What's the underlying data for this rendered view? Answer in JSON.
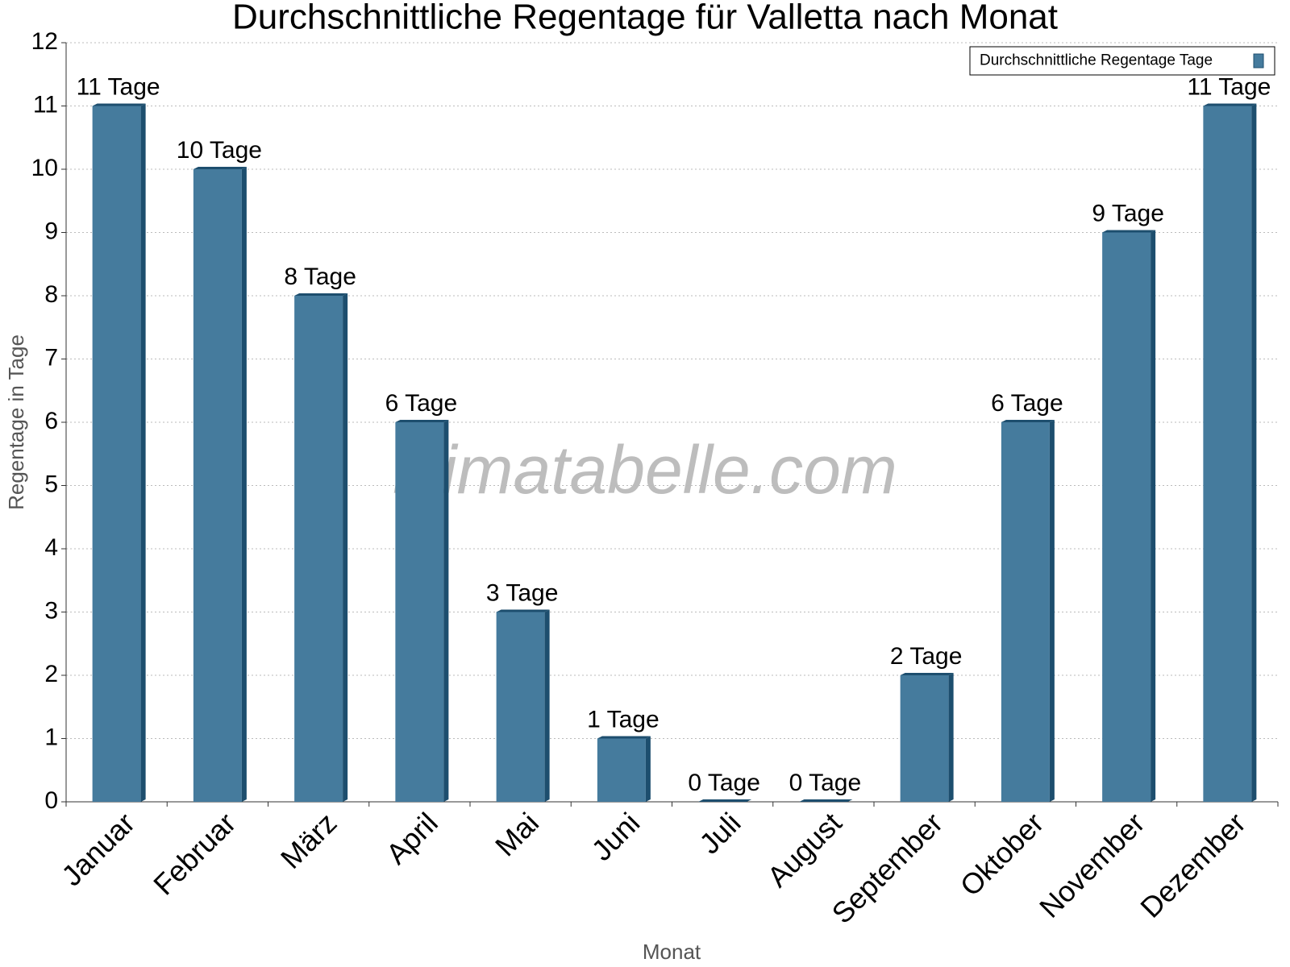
{
  "chart_data": {
    "type": "bar",
    "title": "Durchschnittliche Regentage für Valletta nach Monat",
    "x_label": "Monat",
    "y_label": "Regentage in Tage",
    "watermark": "klimatabelle.com",
    "categories": [
      "Januar",
      "Februar",
      "März",
      "April",
      "Mai",
      "Juni",
      "Juli",
      "August",
      "September",
      "Oktober",
      "November",
      "Dezember"
    ],
    "series": [
      {
        "name": "Durchschnittliche Regentage Tage",
        "color": "#457b9d",
        "values": [
          11,
          10,
          8,
          6,
          3,
          1,
          0,
          0,
          2,
          6,
          9,
          11
        ],
        "value_labels": [
          "11 Tage",
          "10 Tage",
          "8 Tage",
          "6 Tage",
          "3 Tage",
          "1 Tage",
          "0 Tage",
          "0 Tage",
          "2 Tage",
          "6 Tage",
          "9 Tage",
          "11 Tage"
        ]
      }
    ],
    "ylim": [
      0,
      12
    ],
    "yticks": [
      0,
      1,
      2,
      3,
      4,
      5,
      6,
      7,
      8,
      9,
      10,
      11,
      12
    ],
    "grid": true,
    "legend": "top-right"
  }
}
